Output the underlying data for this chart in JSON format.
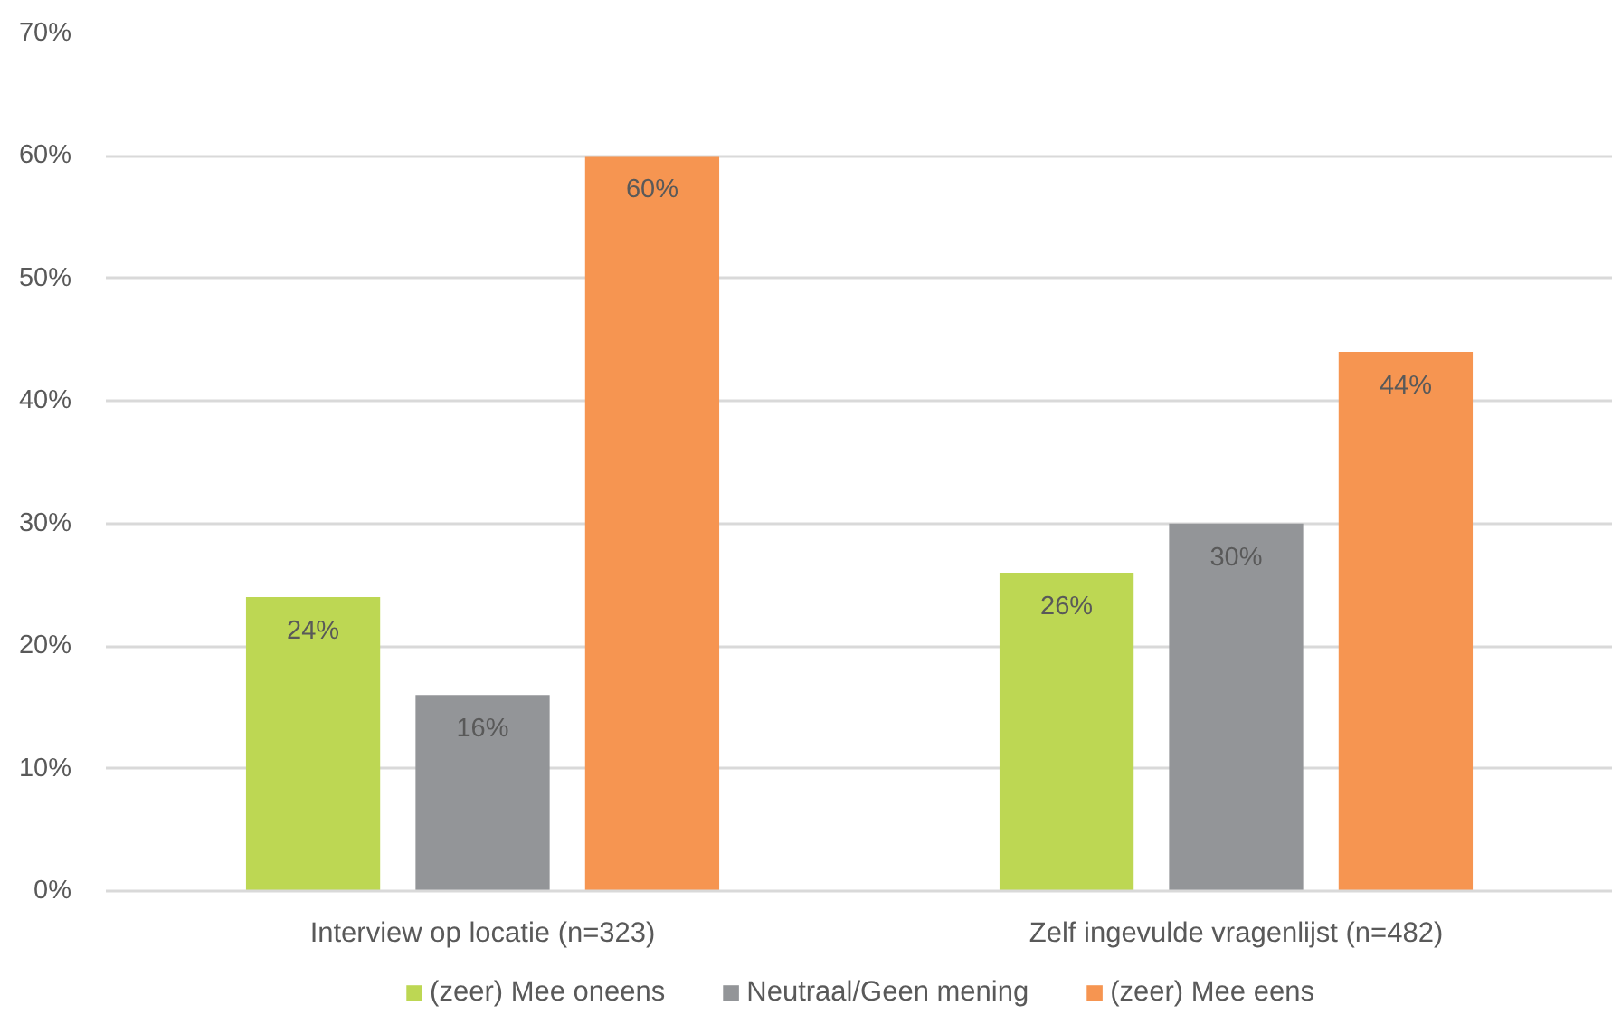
{
  "chart_data": {
    "type": "bar",
    "categories": [
      "Interview op locatie (n=323)",
      "Zelf ingevulde vragenlijst (n=482)"
    ],
    "series": [
      {
        "name": "(zeer) Mee oneens",
        "color": "#bdd753",
        "values": [
          24,
          26
        ],
        "value_labels": [
          "24%",
          "26%"
        ]
      },
      {
        "name": "Neutraal/Geen mening",
        "color": "#939598",
        "values": [
          16,
          30
        ],
        "value_labels": [
          "16%",
          "30%"
        ]
      },
      {
        "name": "(zeer) Mee eens",
        "color": "#f69551",
        "values": [
          60,
          44
        ],
        "value_labels": [
          "60%",
          "44%"
        ]
      }
    ],
    "ylim": [
      0,
      70
    ],
    "yticks": [
      {
        "value": 0,
        "label": "0%"
      },
      {
        "value": 10,
        "label": "10%"
      },
      {
        "value": 20,
        "label": "20%"
      },
      {
        "value": 30,
        "label": "30%"
      },
      {
        "value": 40,
        "label": "40%"
      },
      {
        "value": 50,
        "label": "50%"
      },
      {
        "value": 60,
        "label": "60%"
      },
      {
        "value": 70,
        "label": "70%"
      }
    ],
    "grid": "y",
    "legend": "bottom"
  }
}
